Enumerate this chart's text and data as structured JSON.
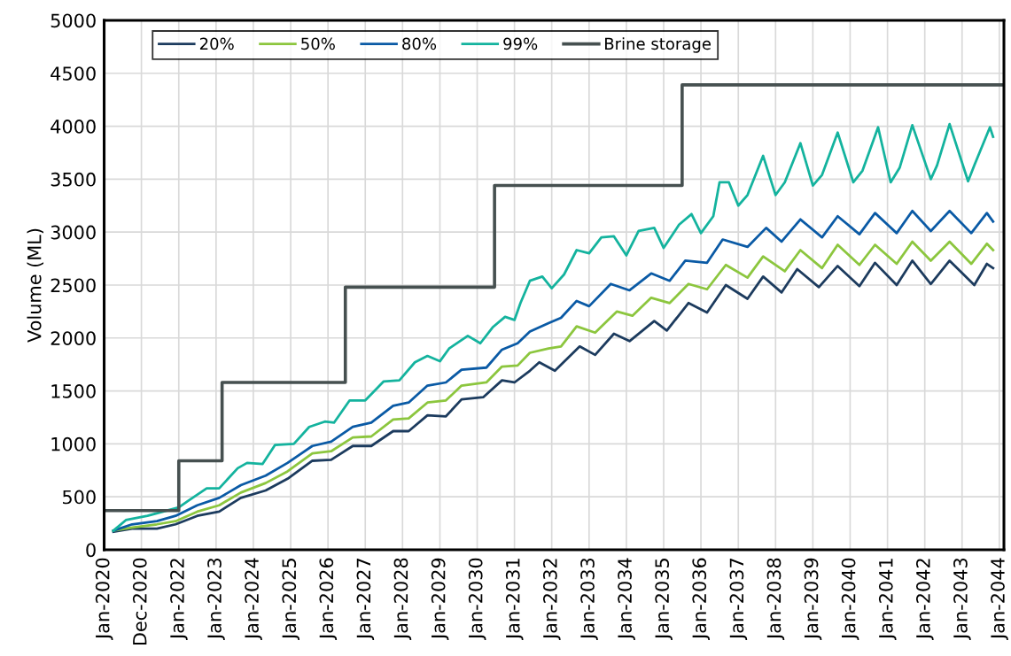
{
  "chart_data": {
    "type": "line",
    "ylabel": "Volume (ML)",
    "ylim": [
      0,
      5000
    ],
    "yticks": [
      0,
      500,
      1000,
      1500,
      2000,
      2500,
      3000,
      3500,
      4000,
      4500,
      5000
    ],
    "xlim": [
      "2020-01-01",
      "2044-02-15"
    ],
    "xticks": [
      {
        "value": "2020-01-01",
        "label": "Jan-2020"
      },
      {
        "value": "2020-12-31",
        "label": "Dec-2020"
      },
      {
        "value": "2022-01-01",
        "label": "Jan-2022"
      },
      {
        "value": "2023-01-01",
        "label": "Jan-2023"
      },
      {
        "value": "2024-01-01",
        "label": "Jan-2024"
      },
      {
        "value": "2025-01-01",
        "label": "Jan-2025"
      },
      {
        "value": "2026-01-01",
        "label": "Jan-2026"
      },
      {
        "value": "2027-01-01",
        "label": "Jan-2027"
      },
      {
        "value": "2028-01-01",
        "label": "Jan-2028"
      },
      {
        "value": "2029-01-01",
        "label": "Jan-2029"
      },
      {
        "value": "2030-01-01",
        "label": "Jan-2030"
      },
      {
        "value": "2031-01-01",
        "label": "Jan-2031"
      },
      {
        "value": "2032-01-01",
        "label": "Jan-2032"
      },
      {
        "value": "2033-01-01",
        "label": "Jan-2033"
      },
      {
        "value": "2034-01-01",
        "label": "Jan-2034"
      },
      {
        "value": "2035-01-01",
        "label": "Jan-2035"
      },
      {
        "value": "2036-01-01",
        "label": "Jan-2036"
      },
      {
        "value": "2037-01-01",
        "label": "Jan-2037"
      },
      {
        "value": "2038-01-01",
        "label": "Jan-2038"
      },
      {
        "value": "2039-01-01",
        "label": "Jan-2039"
      },
      {
        "value": "2040-01-01",
        "label": "Jan-2040"
      },
      {
        "value": "2041-01-01",
        "label": "Jan-2041"
      },
      {
        "value": "2042-01-01",
        "label": "Jan-2042"
      },
      {
        "value": "2043-01-01",
        "label": "Jan-2043"
      },
      {
        "value": "2044-01-01",
        "label": "Jan-2044"
      }
    ],
    "grid": true,
    "legend": "top left",
    "line_style": "solid",
    "marker": "none",
    "series": [
      {
        "name": "20%",
        "color": "#1c3b5e",
        "x": [
          "2020-04",
          "2020-10",
          "2021-06",
          "2021-12",
          "2022-07",
          "2023-02",
          "2023-09",
          "2024-05",
          "2024-12",
          "2025-08",
          "2026-02",
          "2026-09",
          "2027-03",
          "2027-10",
          "2028-03",
          "2028-09",
          "2029-03",
          "2029-08",
          "2030-03",
          "2030-09",
          "2031-01",
          "2031-06",
          "2031-09",
          "2032-02",
          "2032-10",
          "2033-03",
          "2033-09",
          "2034-02",
          "2034-10",
          "2035-02",
          "2035-09",
          "2036-03",
          "2036-09",
          "2037-04",
          "2037-09",
          "2038-03",
          "2038-08",
          "2039-03",
          "2039-09",
          "2040-04",
          "2040-09",
          "2041-04",
          "2041-09",
          "2042-03",
          "2042-09",
          "2043-05",
          "2043-09",
          "2043-11"
        ],
        "values": [
          170,
          200,
          200,
          240,
          320,
          360,
          490,
          560,
          670,
          840,
          850,
          980,
          980,
          1120,
          1120,
          1270,
          1260,
          1420,
          1440,
          1600,
          1580,
          1690,
          1770,
          1690,
          1920,
          1840,
          2040,
          1970,
          2160,
          2070,
          2330,
          2240,
          2500,
          2370,
          2580,
          2430,
          2650,
          2480,
          2680,
          2490,
          2710,
          2500,
          2730,
          2510,
          2730,
          2500,
          2700,
          2660
        ]
      },
      {
        "name": "50%",
        "color": "#8cc63e",
        "x": [
          "2020-04",
          "2020-10",
          "2021-06",
          "2021-12",
          "2022-07",
          "2023-02",
          "2023-09",
          "2024-05",
          "2024-12",
          "2025-08",
          "2026-02",
          "2026-09",
          "2027-03",
          "2027-10",
          "2028-03",
          "2028-09",
          "2029-03",
          "2029-08",
          "2030-04",
          "2030-09",
          "2031-02",
          "2031-06",
          "2031-12",
          "2032-04",
          "2032-09",
          "2033-03",
          "2033-10",
          "2034-03",
          "2034-09",
          "2035-03",
          "2035-09",
          "2036-03",
          "2036-09",
          "2037-04",
          "2037-09",
          "2038-04",
          "2038-09",
          "2039-04",
          "2039-09",
          "2040-04",
          "2040-09",
          "2041-04",
          "2041-09",
          "2042-03",
          "2042-09",
          "2043-04",
          "2043-09",
          "2043-11"
        ],
        "values": [
          180,
          210,
          240,
          270,
          360,
          420,
          540,
          630,
          740,
          910,
          930,
          1060,
          1070,
          1230,
          1240,
          1390,
          1410,
          1550,
          1580,
          1730,
          1740,
          1860,
          1900,
          1920,
          2110,
          2050,
          2250,
          2210,
          2380,
          2330,
          2510,
          2460,
          2690,
          2570,
          2770,
          2630,
          2830,
          2660,
          2880,
          2690,
          2880,
          2700,
          2910,
          2730,
          2910,
          2700,
          2890,
          2830
        ]
      },
      {
        "name": "80%",
        "color": "#0a5aa5",
        "x": [
          "2020-04",
          "2020-10",
          "2021-06",
          "2021-12",
          "2022-07",
          "2023-02",
          "2023-09",
          "2024-05",
          "2024-12",
          "2025-08",
          "2026-02",
          "2026-09",
          "2027-03",
          "2027-10",
          "2028-03",
          "2028-09",
          "2029-03",
          "2029-08",
          "2030-04",
          "2030-09",
          "2031-02",
          "2031-06",
          "2031-12",
          "2032-04",
          "2032-09",
          "2033-01",
          "2033-08",
          "2034-02",
          "2034-09",
          "2035-03",
          "2035-08",
          "2036-03",
          "2036-08",
          "2037-04",
          "2037-10",
          "2038-03",
          "2038-09",
          "2039-04",
          "2039-09",
          "2040-04",
          "2040-09",
          "2041-04",
          "2041-09",
          "2042-03",
          "2042-09",
          "2043-04",
          "2043-09",
          "2043-11"
        ],
        "values": [
          180,
          240,
          270,
          320,
          420,
          490,
          610,
          700,
          820,
          980,
          1020,
          1160,
          1200,
          1360,
          1390,
          1550,
          1580,
          1700,
          1720,
          1890,
          1950,
          2060,
          2140,
          2190,
          2350,
          2300,
          2510,
          2450,
          2610,
          2540,
          2730,
          2710,
          2930,
          2860,
          3040,
          2910,
          3120,
          2950,
          3150,
          2980,
          3180,
          2990,
          3200,
          3010,
          3200,
          2990,
          3180,
          3100
        ]
      },
      {
        "name": "99%",
        "color": "#14b39e",
        "x": [
          "2020-04",
          "2020-08",
          "2021-03",
          "2021-08",
          "2022-01",
          "2022-04",
          "2022-10",
          "2023-02",
          "2023-08",
          "2023-11",
          "2024-04",
          "2024-08",
          "2025-02",
          "2025-07",
          "2025-12",
          "2026-03",
          "2026-08",
          "2027-01",
          "2027-07",
          "2027-12",
          "2028-05",
          "2028-09",
          "2029-01",
          "2029-04",
          "2029-10",
          "2030-02",
          "2030-06",
          "2030-10",
          "2031-01",
          "2031-03",
          "2031-06",
          "2031-10",
          "2032-01",
          "2032-05",
          "2032-09",
          "2033-01",
          "2033-05",
          "2033-09",
          "2034-01",
          "2034-05",
          "2034-10",
          "2035-01",
          "2035-06",
          "2035-10",
          "2036-01",
          "2036-05",
          "2036-07",
          "2036-10",
          "2037-01",
          "2037-04",
          "2037-09",
          "2038-01",
          "2038-04",
          "2038-09",
          "2039-01",
          "2039-04",
          "2039-09",
          "2040-02",
          "2040-05",
          "2040-10",
          "2041-02",
          "2041-05",
          "2041-09",
          "2042-03",
          "2042-05",
          "2042-09",
          "2043-03",
          "2043-05",
          "2043-10",
          "2043-11"
        ],
        "values": [
          180,
          280,
          320,
          360,
          400,
          460,
          580,
          580,
          770,
          820,
          810,
          990,
          1000,
          1160,
          1210,
          1200,
          1410,
          1410,
          1590,
          1600,
          1770,
          1830,
          1780,
          1900,
          2020,
          1950,
          2100,
          2200,
          2170,
          2330,
          2540,
          2580,
          2470,
          2600,
          2830,
          2800,
          2950,
          2960,
          2780,
          3010,
          3040,
          2850,
          3070,
          3170,
          2990,
          3150,
          3470,
          3470,
          3250,
          3350,
          3720,
          3350,
          3470,
          3840,
          3440,
          3540,
          3940,
          3470,
          3580,
          3990,
          3470,
          3610,
          4010,
          3500,
          3630,
          4020,
          3480,
          3630,
          3990,
          3900
        ]
      },
      {
        "name": "Brine storage",
        "type": "step",
        "color": "#465050",
        "x": [
          "2020-01-01",
          "2022-01-01",
          "2023-03-01",
          "2026-06-20",
          "2030-06-20",
          "2035-07-01",
          "2044-02-15"
        ],
        "values": [
          370,
          840,
          1580,
          2480,
          3440,
          4390,
          4390
        ]
      }
    ]
  }
}
